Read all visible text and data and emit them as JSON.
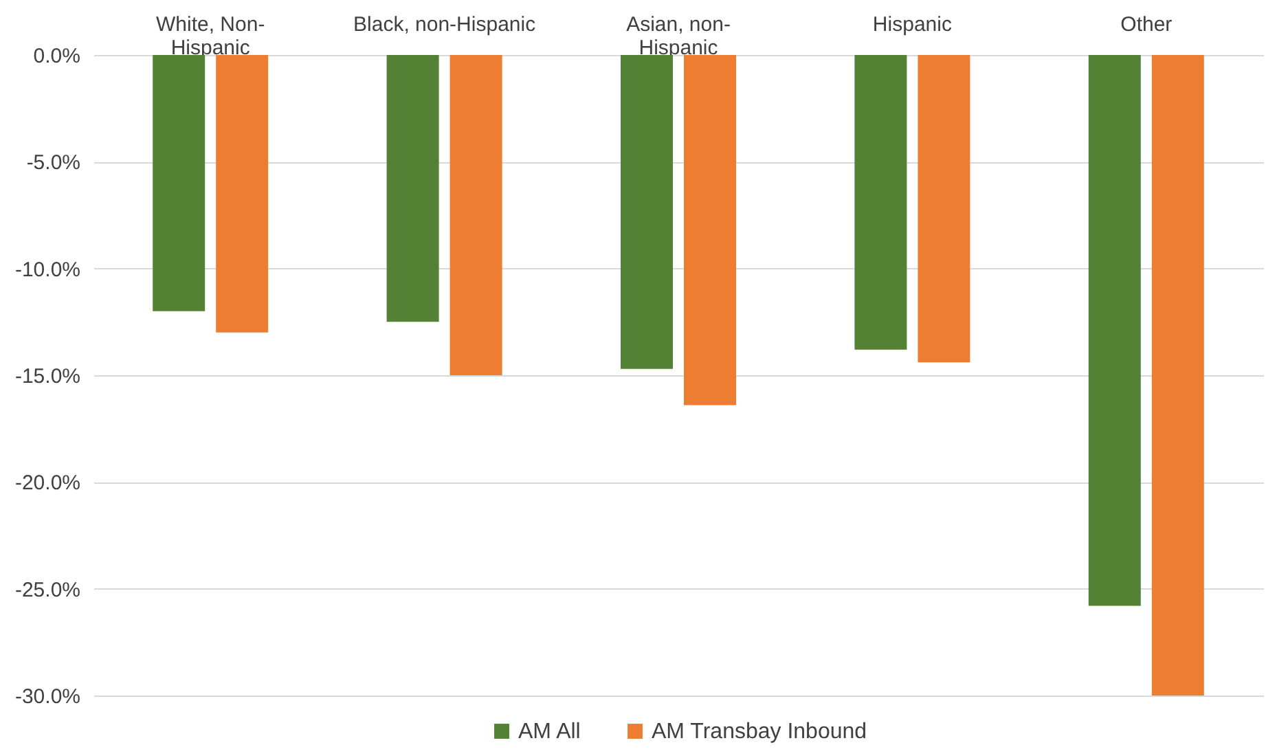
{
  "chart_data": {
    "type": "bar",
    "categories": [
      "White, Non-\nHispanic",
      "Black, non-Hispanic",
      "Asian, non-\nHispanic",
      "Hispanic",
      "Other"
    ],
    "series": [
      {
        "name": "AM All",
        "color": "#548235",
        "values": [
          -12.0,
          -12.5,
          -14.7,
          -13.8,
          -25.8
        ]
      },
      {
        "name": "AM Transbay Inbound",
        "color": "#ed7d31",
        "values": [
          -13.0,
          -15.0,
          -16.4,
          -14.4,
          -30.0
        ]
      }
    ],
    "ylim": [
      -30,
      0
    ],
    "yticks": [
      {
        "value": 0,
        "label": "0.0%"
      },
      {
        "value": -5,
        "label": "-5.0%"
      },
      {
        "value": -10,
        "label": "-10.0%"
      },
      {
        "value": -15,
        "label": "-15.0%"
      },
      {
        "value": -20,
        "label": "-20.0%"
      },
      {
        "value": -25,
        "label": "-25.0%"
      },
      {
        "value": -30,
        "label": "-30.0%"
      }
    ],
    "grid": true,
    "legend": "bottom"
  }
}
